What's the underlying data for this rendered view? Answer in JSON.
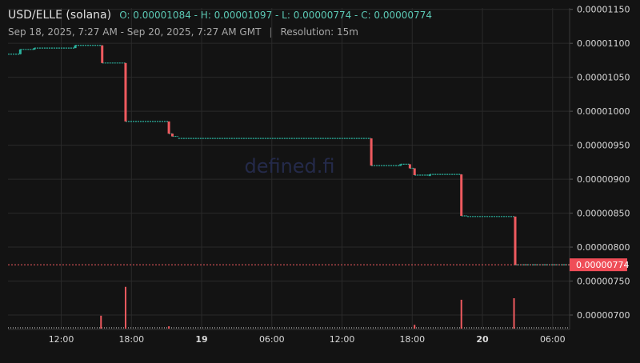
{
  "header": {
    "symbol": "USD/ELLE (solana)",
    "ohlc_text": "O: 0.00001084 - H: 0.00001097 - L: 0.00000774 - C: 0.00000774",
    "range_text": "Sep 18, 2025, 7:27 AM - Sep 20, 2025, 7:27 AM GMT",
    "resolution_text": "Resolution: 15m"
  },
  "watermark": "defined.fi",
  "colors": {
    "background": "#131313",
    "grid": "#2a2a2a",
    "up": "#2bb39f",
    "down": "#ef5a5f",
    "axis_text": "#d8d8d8",
    "price_tag_bg": "#ef4d57",
    "watermark": "#242a4a"
  },
  "chart_data": {
    "type": "candlestick",
    "title": "USD/ELLE (solana)",
    "ylim": [
      6.8e-06,
      1.152e-05
    ],
    "y_ticks": [
      {
        "value": 1.15e-05,
        "label": "0.00001150"
      },
      {
        "value": 1.1e-05,
        "label": "0.00001100"
      },
      {
        "value": 1.05e-05,
        "label": "0.00001050"
      },
      {
        "value": 1e-05,
        "label": "0.00001000"
      },
      {
        "value": 9.5e-06,
        "label": "0.00000950"
      },
      {
        "value": 9e-06,
        "label": "0.00000900"
      },
      {
        "value": 8.5e-06,
        "label": "0.00000850"
      },
      {
        "value": 8e-06,
        "label": "0.00000800"
      },
      {
        "value": 7.5e-06,
        "label": "0.00000750"
      },
      {
        "value": 7e-06,
        "label": "0.00000700"
      }
    ],
    "x_range_hours": [
      7.45,
      55.45
    ],
    "x_ticks": [
      {
        "hours": 12,
        "label": "12:00",
        "bold": false
      },
      {
        "hours": 18,
        "label": "18:00",
        "bold": false
      },
      {
        "hours": 24,
        "label": "19",
        "bold": true
      },
      {
        "hours": 30,
        "label": "06:00",
        "bold": false
      },
      {
        "hours": 36,
        "label": "12:00",
        "bold": false
      },
      {
        "hours": 42,
        "label": "18:00",
        "bold": false
      },
      {
        "hours": 48,
        "label": "20",
        "bold": true
      },
      {
        "hours": 54,
        "label": "06:00",
        "bold": false
      }
    ],
    "last_price": {
      "value": 7.74e-06,
      "label": "0.00000774"
    },
    "price_path": [
      [
        7.45,
        1.084e-05
      ],
      [
        8.5,
        1.091e-05
      ],
      [
        9.7,
        1.093e-05
      ],
      [
        13.2,
        1.097e-05
      ],
      [
        15.5,
        1.071e-05
      ],
      [
        17.5,
        9.85e-06
      ],
      [
        21.2,
        9.67e-06
      ],
      [
        21.5,
        9.63e-06
      ],
      [
        22.0,
        9.6e-06
      ],
      [
        38.5,
        9.2e-06
      ],
      [
        41.0,
        9.22e-06
      ],
      [
        41.8,
        9.16e-06
      ],
      [
        42.2,
        9.06e-06
      ],
      [
        43.5,
        9.07e-06
      ],
      [
        46.2,
        8.46e-06
      ],
      [
        46.7,
        8.45e-06
      ],
      [
        50.8,
        7.74e-06
      ],
      [
        55.45,
        7.74e-06
      ]
    ],
    "drops": [
      {
        "hours": 15.5,
        "from": 1.097e-05,
        "to": 1.071e-05
      },
      {
        "hours": 17.5,
        "from": 1.071e-05,
        "to": 9.85e-06
      },
      {
        "hours": 21.2,
        "from": 9.85e-06,
        "to": 9.67e-06
      },
      {
        "hours": 21.5,
        "from": 9.67e-06,
        "to": 9.63e-06
      },
      {
        "hours": 38.5,
        "from": 9.6e-06,
        "to": 9.2e-06
      },
      {
        "hours": 41.8,
        "from": 9.22e-06,
        "to": 9.16e-06
      },
      {
        "hours": 42.2,
        "from": 9.16e-06,
        "to": 9.06e-06
      },
      {
        "hours": 46.2,
        "from": 9.07e-06,
        "to": 8.46e-06
      },
      {
        "hours": 50.8,
        "from": 8.45e-06,
        "to": 7.74e-06
      }
    ],
    "volume": [
      {
        "hours": 15.4,
        "value": 0.17,
        "color": "down"
      },
      {
        "hours": 17.5,
        "value": 0.55,
        "color": "down"
      },
      {
        "hours": 21.2,
        "value": 0.03,
        "color": "down"
      },
      {
        "hours": 42.2,
        "value": 0.05,
        "color": "down"
      },
      {
        "hours": 46.2,
        "value": 0.38,
        "color": "down"
      },
      {
        "hours": 50.7,
        "value": 0.4,
        "color": "down"
      }
    ]
  }
}
